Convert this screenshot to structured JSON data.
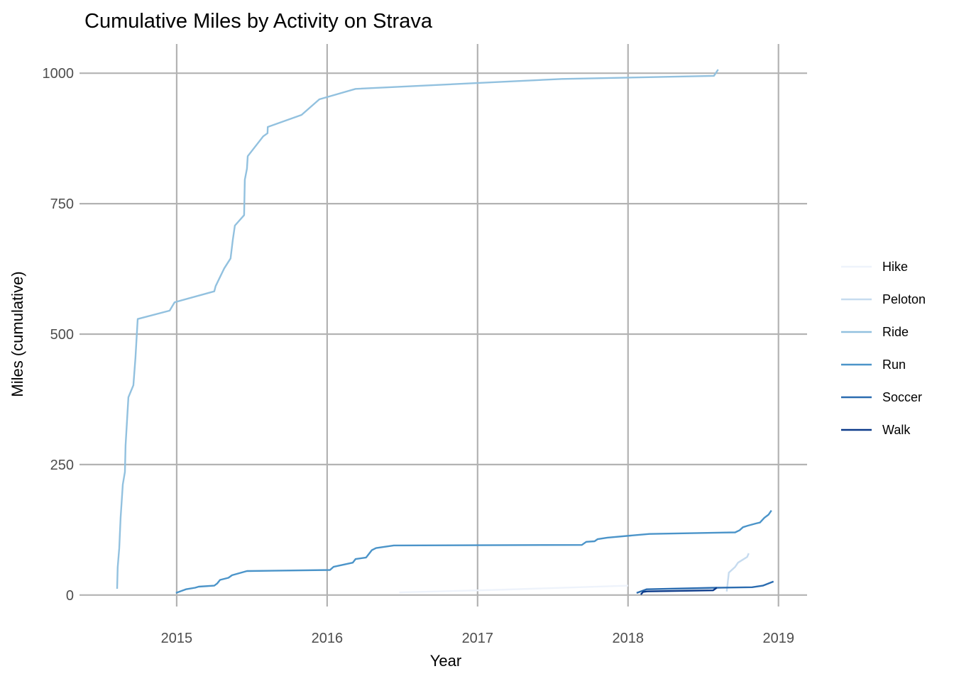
{
  "chart_data": {
    "type": "line",
    "title": "Cumulative Miles by Activity on Strava",
    "xlabel": "Year",
    "ylabel": "Miles (cumulative)",
    "xlim": [
      2014.354,
      2019.19
    ],
    "ylim": [
      -22,
      1056
    ],
    "x_ticks": [
      2015,
      2016,
      2017,
      2018,
      2019
    ],
    "x_tick_labels": [
      "2015",
      "2016",
      "2017",
      "2018",
      "2019"
    ],
    "y_ticks": [
      0,
      250,
      500,
      750,
      1000
    ],
    "y_tick_labels": [
      "0",
      "250",
      "500",
      "750",
      "1000"
    ],
    "grid": true,
    "legend_position": "right",
    "series": [
      {
        "name": "Hike",
        "color": "#eef3fb",
        "x": [
          2016.48,
          2017.13,
          2018.0
        ],
        "y": [
          5,
          10,
          18
        ]
      },
      {
        "name": "Peloton",
        "color": "#c6dbef",
        "x": [
          2018.656,
          2018.67,
          2018.712,
          2018.731,
          2018.764,
          2018.792,
          2018.802
        ],
        "y": [
          7,
          43,
          54,
          62,
          68,
          73,
          80
        ]
      },
      {
        "name": "Ride",
        "color": "#92c1df",
        "x": [
          2014.604,
          2014.608,
          2014.618,
          2014.627,
          2014.642,
          2014.656,
          2014.66,
          2014.679,
          2014.712,
          2014.726,
          2014.741,
          2014.953,
          2014.986,
          2015.25,
          2015.259,
          2015.316,
          2015.358,
          2015.373,
          2015.387,
          2015.448,
          2015.453,
          2015.467,
          2015.472,
          2015.575,
          2015.604,
          2015.605,
          2015.83,
          2015.948,
          2016.189,
          2017.561,
          2018.571,
          2018.599
        ],
        "y": [
          12,
          53,
          90,
          148,
          212,
          236,
          287,
          379,
          402,
          454,
          529,
          545,
          561,
          582,
          592,
          626,
          645,
          681,
          708,
          728,
          796,
          817,
          841,
          879,
          885,
          897,
          920,
          950,
          970,
          989,
          995,
          1007
        ]
      },
      {
        "name": "Run",
        "color": "#4b94c9",
        "x": [
          2014.995,
          2015.061,
          2015.123,
          2015.146,
          2015.25,
          2015.269,
          2015.288,
          2015.344,
          2015.368,
          2015.467,
          2016.019,
          2016.042,
          2016.17,
          2016.189,
          2016.259,
          2016.297,
          2016.325,
          2016.443,
          2017.693,
          2017.722,
          2017.778,
          2017.797,
          2017.863,
          2018.142,
          2018.712,
          2018.741,
          2018.764,
          2018.797,
          2018.849,
          2018.877,
          2018.906,
          2018.934,
          2018.953
        ],
        "y": [
          4,
          11,
          14,
          16,
          18,
          22,
          29,
          33,
          38,
          46,
          48,
          54,
          62,
          69,
          72,
          86,
          90,
          95,
          96,
          102,
          103,
          107,
          110,
          117,
          120,
          124,
          130,
          133,
          137,
          139,
          148,
          154,
          162
        ]
      },
      {
        "name": "Soccer",
        "color": "#2b6cb0",
        "x": [
          2018.057,
          2018.123,
          2018.59,
          2018.825,
          2018.896,
          2018.967
        ],
        "y": [
          4,
          11,
          14,
          15,
          18,
          26
        ]
      },
      {
        "name": "Walk",
        "color": "#0c3a8a",
        "x": [
          2018.085,
          2018.1,
          2018.127,
          2018.566,
          2018.59
        ],
        "y": [
          1,
          6,
          7,
          9,
          14
        ]
      }
    ]
  }
}
